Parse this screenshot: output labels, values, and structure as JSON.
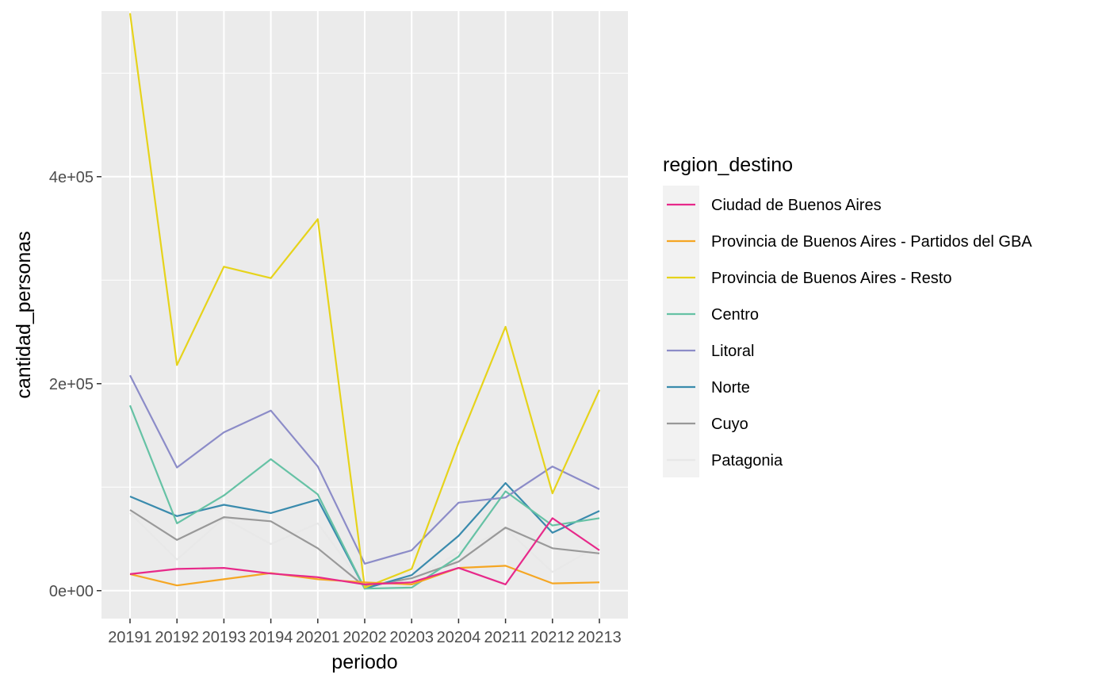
{
  "chart_data": {
    "type": "line",
    "xlabel": "periodo",
    "ylabel": "cantidad_personas",
    "categories": [
      "20191",
      "20192",
      "20193",
      "20194",
      "20201",
      "20202",
      "20203",
      "20204",
      "20211",
      "20212",
      "20213"
    ],
    "ylim": [
      -27000,
      560000
    ],
    "yticks": [
      0,
      200000,
      400000
    ],
    "ytick_labels": [
      "0e+00",
      "2e+05",
      "4e+05"
    ],
    "grid": true,
    "legend": {
      "title": "region_destino",
      "position": "right"
    },
    "series": [
      {
        "name": "Ciudad de Buenos Aires",
        "color": "#e7298a",
        "values": [
          16000,
          21000,
          22000,
          16500,
          13000,
          6000,
          8000,
          22000,
          6000,
          70000,
          39000
        ]
      },
      {
        "name": "Provincia de Buenos Aires - Partidos del GBA",
        "color": "#f5a623",
        "values": [
          16000,
          5000,
          11000,
          17000,
          11000,
          8000,
          6000,
          22000,
          24000,
          7000,
          8000
        ]
      },
      {
        "name": "Provincia de Buenos Aires - Resto",
        "color": "#e6d31b",
        "values": [
          558000,
          218000,
          313000,
          302000,
          359000,
          3000,
          21000,
          143000,
          255000,
          94000,
          194000
        ]
      },
      {
        "name": "Centro",
        "color": "#66c2a5",
        "values": [
          179000,
          65000,
          92000,
          127000,
          93000,
          2000,
          3000,
          33000,
          96000,
          63000,
          70000
        ]
      },
      {
        "name": "Litoral",
        "color": "#8c8cc8",
        "values": [
          208000,
          119000,
          153000,
          174000,
          120000,
          26000,
          39000,
          85000,
          90000,
          120000,
          98000
        ]
      },
      {
        "name": "Norte",
        "color": "#3a8bad",
        "values": [
          91000,
          72000,
          83000,
          75000,
          88000,
          2000,
          15000,
          53000,
          104000,
          56000,
          77000
        ]
      },
      {
        "name": "Cuyo",
        "color": "#999999",
        "values": [
          78000,
          49000,
          71000,
          67000,
          41000,
          4000,
          12000,
          28000,
          61000,
          41000,
          36000
        ]
      },
      {
        "name": "Patagonia",
        "color": "#e8e8e8",
        "values": [
          75000,
          30000,
          70000,
          45000,
          65000,
          4000,
          10000,
          37000,
          60000,
          18000,
          44000
        ]
      }
    ]
  }
}
